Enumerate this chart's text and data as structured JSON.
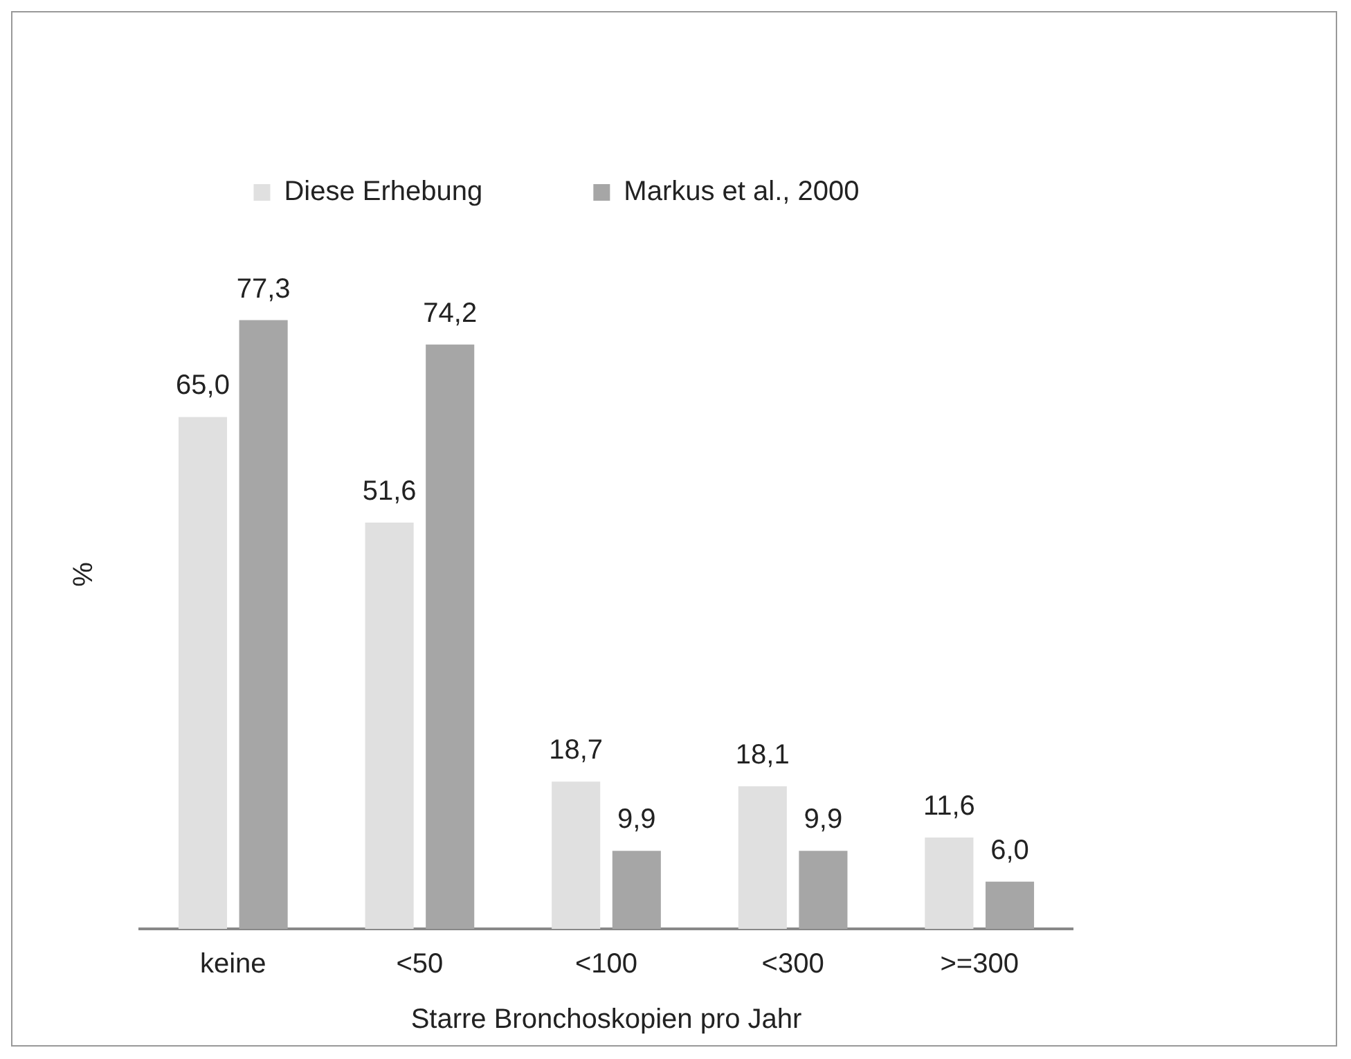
{
  "chart_data": {
    "type": "bar",
    "xlabel": "Starre Bronchoskopien pro Jahr",
    "ylabel": "%",
    "categories": [
      "keine",
      "<50",
      "<100",
      "<300",
      ">=300"
    ],
    "series": [
      {
        "name": "Diese Erhebung",
        "color": "#e0e0e0",
        "values": [
          65.0,
          51.6,
          18.7,
          18.1,
          11.6
        ],
        "value_labels": [
          "65,0",
          "51,6",
          "18,7",
          "18,1",
          "11,6"
        ]
      },
      {
        "name": "Markus et al., 2000",
        "color": "#a6a6a6",
        "values": [
          77.3,
          74.2,
          9.9,
          9.9,
          6.0
        ],
        "value_labels": [
          "77,3",
          "74,2",
          "9,9",
          "9,9",
          "6,0"
        ]
      }
    ],
    "legend": "top",
    "grid": false
  }
}
